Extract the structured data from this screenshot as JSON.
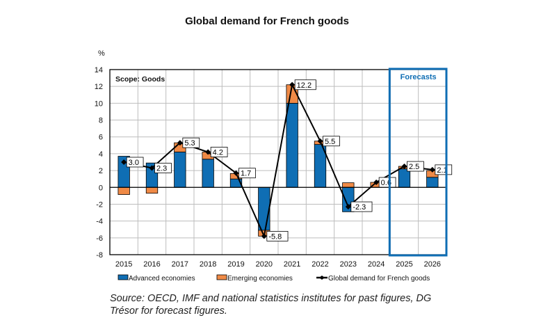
{
  "chart_data": {
    "type": "bar",
    "stacked": true,
    "title": "Global demand for French goods",
    "ylabel": "%",
    "annotation": "Scope: Goods",
    "forecast_label": "Forecasts",
    "forecast_categories": [
      "2025",
      "2026"
    ],
    "categories": [
      "2015",
      "2016",
      "2017",
      "2018",
      "2019",
      "2020",
      "2021",
      "2022",
      "2023",
      "2024",
      "2025",
      "2026"
    ],
    "ylim": [
      -8,
      14
    ],
    "yticks": [
      -8,
      -6,
      -4,
      -2,
      0,
      2,
      4,
      6,
      8,
      10,
      12,
      14
    ],
    "grid": true,
    "legend_position": "bottom",
    "series": [
      {
        "name": "Advanced economies",
        "kind": "bar",
        "color": "#0f6eb4",
        "values": [
          3.7,
          2.9,
          4.2,
          3.35,
          1.0,
          -5.1,
          10.0,
          5.1,
          -2.9,
          0.0,
          2.2,
          1.2
        ]
      },
      {
        "name": "Emerging economies",
        "kind": "bar",
        "color": "#f08a46",
        "values": [
          -0.85,
          -0.7,
          1.1,
          0.85,
          0.65,
          -0.7,
          2.2,
          0.4,
          0.55,
          0.6,
          0.3,
          0.8
        ]
      },
      {
        "name": "Global demand for French goods",
        "kind": "line",
        "color": "#000000",
        "values": [
          3.0,
          2.3,
          5.3,
          4.2,
          1.7,
          -5.8,
          12.2,
          5.5,
          -2.3,
          0.6,
          2.5,
          2.1
        ],
        "labels": [
          "3.0",
          "2.3",
          "5.3",
          "4.2",
          "1.7",
          "-5.8",
          "12.2",
          "5.5",
          "-2.3",
          "0.6",
          "2.5",
          "2.1"
        ]
      }
    ],
    "forecast_color": "#0f6eb4"
  },
  "source": "Source: OECD, IMF and national statistics institutes for past figures, DG Trésor for forecast figures."
}
